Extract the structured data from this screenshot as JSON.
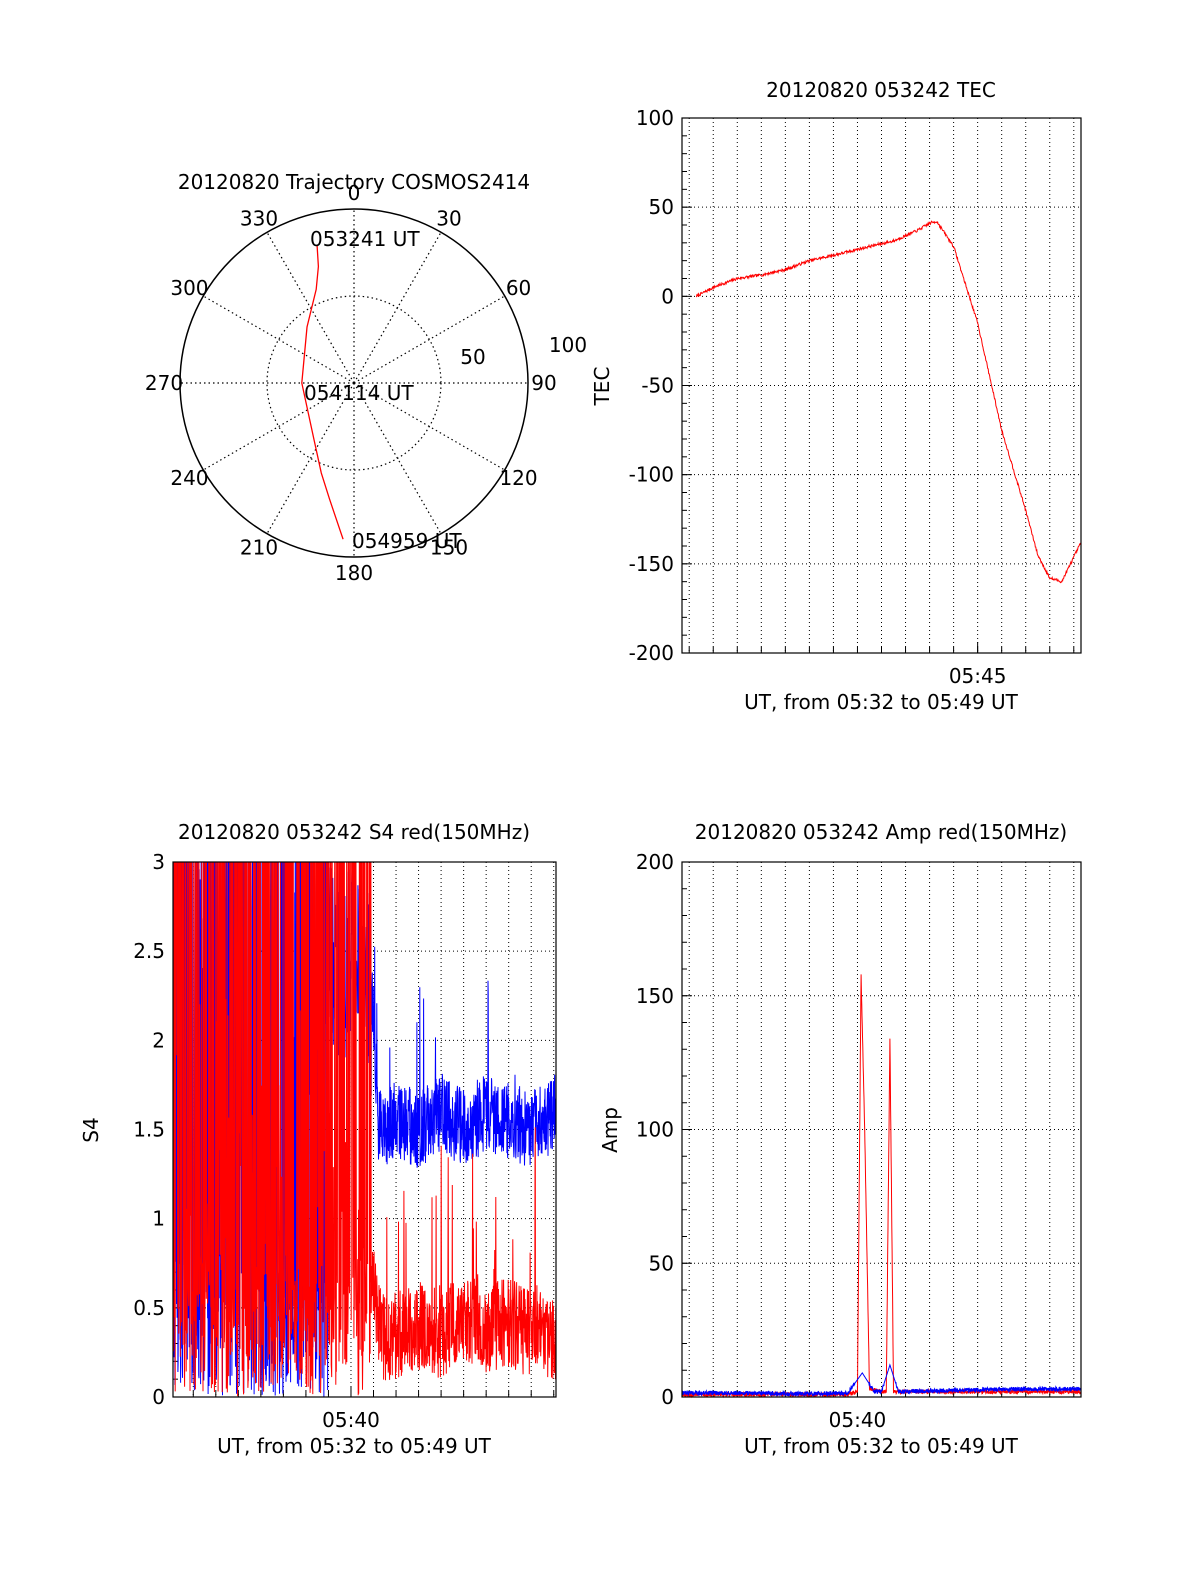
{
  "colors": {
    "red": "#ff0000",
    "blue": "#0000ff",
    "axis": "#000000",
    "grid": "#000000"
  },
  "chart_data": [
    {
      "id": "trajectory",
      "type": "polar",
      "title": "20120820 Trajectory COSMOS2414",
      "azimuth_labels": [
        "0",
        "30",
        "60",
        "90",
        "120",
        "150",
        "180",
        "210",
        "240",
        "270",
        "300",
        "330"
      ],
      "radial_labels": [
        "50",
        "100"
      ],
      "radial_max": 100,
      "grid": true,
      "annotations": [
        "053241 UT",
        "054114 UT",
        "054959 UT"
      ],
      "series": [
        {
          "color": "red",
          "points": [
            {
              "az": 345,
              "el": 18
            },
            {
              "az": 343,
              "el": 30
            },
            {
              "az": 338,
              "el": 42
            },
            {
              "az": 320,
              "el": 58
            },
            {
              "az": 270,
              "el": 70
            },
            {
              "az": 215,
              "el": 60
            },
            {
              "az": 200,
              "el": 45
            },
            {
              "az": 192,
              "el": 32
            },
            {
              "az": 184,
              "el": 10
            }
          ]
        }
      ]
    },
    {
      "id": "tec",
      "type": "line",
      "title": "20120820 053242 TEC",
      "xlabel": "UT, from 05:32 to 05:49 UT",
      "ylabel": "TEC",
      "xlim": [
        32.7,
        49.3
      ],
      "ylim": [
        -200,
        100
      ],
      "yticks": [
        "100",
        "50",
        "0",
        "-50",
        "-100",
        "-150",
        "-200"
      ],
      "xtick_labels": [
        {
          "x": 45,
          "label": "05:45"
        }
      ],
      "grid": true,
      "series": [
        {
          "color": "red",
          "x": [
            33.3,
            34.0,
            35.0,
            36.0,
            37.0,
            38.0,
            39.0,
            40.5,
            41.5,
            42.5,
            43.0,
            43.3,
            44.0,
            45.0,
            46.0,
            47.0,
            47.5,
            48.0,
            48.5,
            49.3
          ],
          "y": [
            0,
            5,
            10,
            12,
            15,
            20,
            23,
            28,
            31,
            37,
            41,
            42,
            28,
            -15,
            -75,
            -120,
            -145,
            -158,
            -160,
            -138
          ]
        }
      ]
    },
    {
      "id": "s4",
      "type": "line",
      "title": "20120820 053242 S4 red(150MHz)",
      "xlabel": "UT, from 05:32 to 05:49 UT",
      "ylabel": "S4",
      "xlim": [
        32.1,
        49.1
      ],
      "ylim": [
        0,
        3
      ],
      "yticks": [
        "0",
        "0.5",
        "1",
        "1.5",
        "2",
        "2.5",
        "3"
      ],
      "xtick_labels": [
        {
          "x": 40,
          "label": "05:40"
        }
      ],
      "grid": true,
      "series": [
        {
          "color": "blue",
          "x": [
            32.1,
            33.5,
            35.0,
            36.5,
            38.0,
            39.5,
            41.0,
            41.2,
            42.0,
            43.0,
            44.0,
            45.0,
            46.0,
            47.0,
            48.0,
            49.1
          ],
          "y": [
            2.8,
            2.7,
            2.6,
            2.5,
            2.4,
            2.5,
            2.2,
            1.5,
            1.55,
            1.5,
            1.6,
            1.5,
            1.6,
            1.55,
            1.5,
            1.6
          ]
        },
        {
          "color": "red",
          "x": [
            32.1,
            33.5,
            35.0,
            36.5,
            38.0,
            39.0,
            39.7,
            40.3,
            40.8,
            41.2,
            41.5,
            42.0,
            43.0,
            44.0,
            45.0,
            46.0,
            47.0,
            48.0,
            49.1
          ],
          "y": [
            1.6,
            1.4,
            1.5,
            1.3,
            1.4,
            1.2,
            0.6,
            1.1,
            0.9,
            0.4,
            0.33,
            0.35,
            0.4,
            0.35,
            0.45,
            0.38,
            0.42,
            0.35,
            0.33
          ]
        }
      ]
    },
    {
      "id": "amp",
      "type": "line",
      "title": "20120820 053242 Amp red(150MHz)",
      "xlabel": "UT, from 05:32 to 05:49 UT",
      "ylabel": "Amp",
      "xlim": [
        32.7,
        49.3
      ],
      "ylim": [
        0,
        200
      ],
      "yticks": [
        "0",
        "50",
        "100",
        "150",
        "200"
      ],
      "xtick_labels": [
        {
          "x": 40,
          "label": "05:40"
        }
      ],
      "grid": true,
      "series": [
        {
          "color": "red",
          "x": [
            32.7,
            39.6,
            40.0,
            40.15,
            40.3,
            40.5,
            41.0,
            41.2,
            41.35,
            41.5,
            49.3
          ],
          "y": [
            1,
            1,
            2,
            158,
            100,
            3,
            2,
            2,
            134,
            2,
            2
          ]
        },
        {
          "color": "blue",
          "x": [
            32.7,
            35.0,
            38.0,
            39.6,
            40.2,
            40.7,
            41.0,
            41.35,
            41.7,
            44.0,
            47.0,
            49.3
          ],
          "y": [
            1.5,
            1.5,
            1.2,
            1.5,
            9,
            2,
            2,
            12,
            2,
            2.5,
            3,
            3
          ]
        }
      ]
    }
  ]
}
